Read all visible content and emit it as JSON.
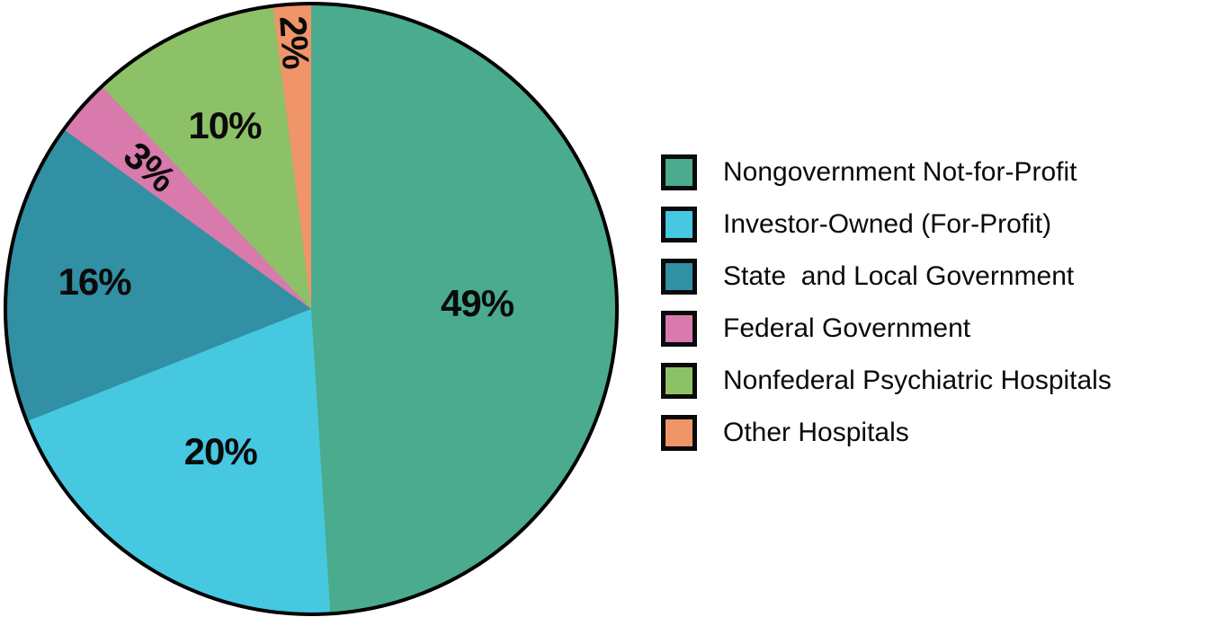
{
  "figure": {
    "background": "#ffffff"
  },
  "chart_data": {
    "type": "pie",
    "title": "",
    "labels": [
      "Nongovernment Not-for-Profit",
      "Investor-Owned (For-Profit)",
      "State  and Local Government",
      "Federal Government",
      "Nonfederal Psychiatric Hospitals",
      "Other Hospitals"
    ],
    "values": [
      49,
      20,
      16,
      3,
      10,
      2
    ],
    "pct_labels": [
      "49%",
      "20%",
      "16%",
      "3%",
      "10%",
      "2%"
    ],
    "colors": [
      "#4aab8e",
      "#45c8e0",
      "#3190a3",
      "#d87aac",
      "#8cc168",
      "#f09469"
    ],
    "unit": "%",
    "start_angle_deg": 0,
    "direction": "clockwise",
    "legend_position": "right",
    "outline_color": "#000000",
    "label_text_color": "#0a0a0a",
    "label_radius_frac": [
      0.54,
      0.55,
      0.71,
      0.7,
      0.66,
      0.87
    ],
    "label_rotated": [
      false,
      false,
      false,
      true,
      false,
      true
    ]
  }
}
